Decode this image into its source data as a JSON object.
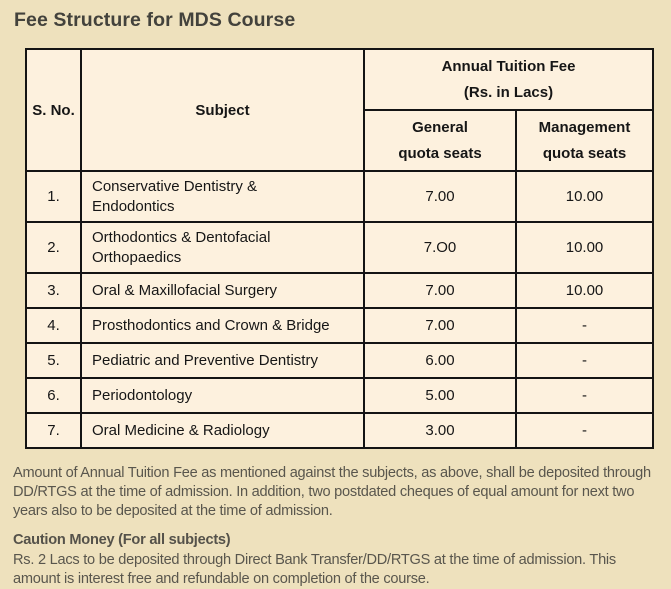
{
  "page": {
    "title": "Fee Structure for MDS Course"
  },
  "table": {
    "header": {
      "sno": "S. No.",
      "subject": "Subject",
      "fee_group": {
        "line1": "Annual Tuition Fee",
        "line2": "(Rs. in Lacs)"
      },
      "general": {
        "line1": "General",
        "line2": "quota seats"
      },
      "management": {
        "line1": "Management",
        "line2": "quota seats"
      }
    },
    "rows": [
      {
        "sno": "1.",
        "subject": "Conservative Dentistry &\nEndodontics",
        "general": "7.00",
        "management": "10.00"
      },
      {
        "sno": "2.",
        "subject": "Orthodontics & Dentofacial\nOrthopaedics",
        "general": "7.O0",
        "management": "10.00"
      },
      {
        "sno": "3.",
        "subject": "Oral & Maxillofacial Surgery",
        "general": "7.00",
        "management": "10.00"
      },
      {
        "sno": "4.",
        "subject": "Prosthodontics and Crown & Bridge",
        "general": "7.00",
        "management": "-"
      },
      {
        "sno": "5.",
        "subject": "Pediatric and Preventive Dentistry",
        "general": "6.00",
        "management": "-"
      },
      {
        "sno": "6.",
        "subject": "Periodontology",
        "general": "5.00",
        "management": "-"
      },
      {
        "sno": "7.",
        "subject": "Oral Medicine & Radiology",
        "general": "3.00",
        "management": "-"
      }
    ]
  },
  "notes": {
    "tuition_note": "Amount of Annual Tuition Fee as mentioned against the subjects, as above, shall be deposited through DD/RTGS at the time of admission. In addition, two postdated cheques of equal amount for next two years also to be deposited at the time of admission.",
    "caution_heading": "Caution Money (For all subjects)",
    "caution_note": "Rs. 2 Lacs to be deposited through Direct Bank Transfer/DD/RTGS at the time of admission. This amount is interest free and refundable on completion of the course."
  },
  "colors": {
    "page_background": "#eee1bd",
    "cell_background": "#fdf1de",
    "border": "#141414",
    "table_text": "#161616",
    "title_text": "#43423c",
    "note_text": "#59564d"
  }
}
